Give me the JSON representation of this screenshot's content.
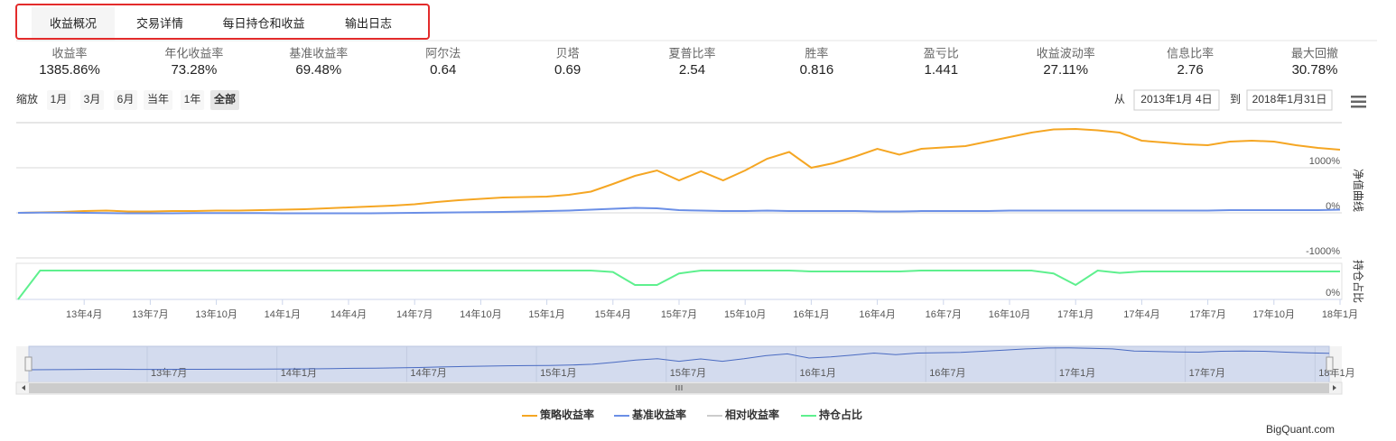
{
  "tabs": [
    "收益概况",
    "交易详情",
    "每日持仓和收益",
    "输出日志"
  ],
  "metrics": [
    {
      "label": "收益率",
      "value": "1385.86%"
    },
    {
      "label": "年化收益率",
      "value": "73.28%"
    },
    {
      "label": "基准收益率",
      "value": "69.48%"
    },
    {
      "label": "阿尔法",
      "value": "0.64"
    },
    {
      "label": "贝塔",
      "value": "0.69"
    },
    {
      "label": "夏普比率",
      "value": "2.54"
    },
    {
      "label": "胜率",
      "value": "0.816"
    },
    {
      "label": "盈亏比",
      "value": "1.441"
    },
    {
      "label": "收益波动率",
      "value": "27.11%"
    },
    {
      "label": "信息比率",
      "value": "2.76"
    },
    {
      "label": "最大回撤",
      "value": "30.78%"
    }
  ],
  "zoom": {
    "label": "缩放",
    "buttons": [
      "1月",
      "3月",
      "6月",
      "当年",
      "1年",
      "全部"
    ]
  },
  "date_range": {
    "from_label": "从",
    "from": "2013年1月 4日",
    "to_label": "到",
    "to": "2018年1月31日"
  },
  "chart_data": [
    {
      "type": "line",
      "y_axis_title": "净值曲线",
      "categories": [
        null,
        null,
        null,
        "13年4月",
        null,
        null,
        "13年7月",
        null,
        null,
        "13年10月",
        null,
        null,
        "14年1月",
        null,
        null,
        "14年4月",
        null,
        null,
        "14年7月",
        null,
        null,
        "14年10月",
        null,
        null,
        "15年1月",
        null,
        null,
        "15年4月",
        null,
        null,
        "15年7月",
        null,
        null,
        "15年10月",
        null,
        null,
        "16年1月",
        null,
        null,
        "16年4月",
        null,
        null,
        "16年7月",
        null,
        null,
        "16年10月",
        null,
        null,
        "17年1月",
        null,
        null,
        "17年4月",
        null,
        null,
        "17年7月",
        null,
        null,
        "17年10月",
        null,
        null,
        "18年1月"
      ],
      "series": [
        {
          "name": "策略收益率",
          "color": "#f5a623",
          "values": [
            0,
            10,
            20,
            40,
            50,
            30,
            30,
            40,
            40,
            50,
            50,
            60,
            70,
            80,
            100,
            120,
            140,
            160,
            190,
            240,
            280,
            310,
            340,
            350,
            360,
            400,
            470,
            640,
            820,
            940,
            720,
            920,
            720,
            940,
            1200,
            1350,
            1000,
            1100,
            1250,
            1420,
            1290,
            1420,
            1450,
            1480,
            1580,
            1680,
            1780,
            1850,
            1860,
            1830,
            1780,
            1600,
            1560,
            1520,
            1500,
            1580,
            1600,
            1580,
            1500,
            1440,
            1400
          ]
        },
        {
          "name": "基准收益率",
          "color": "#6b8fe6",
          "values": [
            0,
            5,
            5,
            0,
            -5,
            -10,
            -10,
            -10,
            -5,
            -5,
            -5,
            -5,
            -10,
            -10,
            -10,
            -10,
            -10,
            -5,
            0,
            5,
            10,
            15,
            20,
            30,
            40,
            50,
            70,
            90,
            110,
            100,
            60,
            50,
            40,
            40,
            50,
            40,
            40,
            40,
            40,
            30,
            30,
            40,
            40,
            40,
            40,
            50,
            50,
            50,
            50,
            50,
            50,
            50,
            50,
            50,
            50,
            60,
            60,
            60,
            60,
            60,
            70
          ]
        }
      ],
      "ylim": [
        -1000,
        2000
      ],
      "yticks": [
        {
          "value": -1000,
          "label": "-1000%"
        },
        {
          "value": 0,
          "label": "0%"
        },
        {
          "value": 1000,
          "label": "1000%"
        }
      ],
      "grid": true
    },
    {
      "type": "line",
      "y_axis_title": "持仓占比",
      "series": [
        {
          "name": "持仓占比",
          "color": "#5ef08e",
          "values": [
            0,
            100,
            100,
            100,
            100,
            100,
            100,
            100,
            100,
            100,
            100,
            100,
            100,
            100,
            100,
            100,
            100,
            100,
            100,
            100,
            100,
            100,
            100,
            100,
            100,
            100,
            100,
            95,
            50,
            50,
            90,
            100,
            100,
            100,
            100,
            100,
            97,
            97,
            97,
            97,
            97,
            100,
            100,
            100,
            100,
            100,
            100,
            90,
            50,
            100,
            92,
            97,
            97,
            97,
            97,
            97,
            97,
            97,
            97,
            97,
            97
          ]
        }
      ],
      "ylim": [
        0,
        125
      ],
      "yticks": [
        {
          "value": 0,
          "label": "0%"
        }
      ],
      "grid": false
    }
  ],
  "navigator": {
    "labels": [
      "13年7月",
      "14年1月",
      "14年7月",
      "15年1月",
      "15年7月",
      "16年1月",
      "16年7月",
      "17年1月",
      "17年7月",
      "18年1月"
    ]
  },
  "inactive_legend": {
    "name": "相对收益率",
    "color": "#cccccc"
  },
  "footer": "BigQuant.com"
}
